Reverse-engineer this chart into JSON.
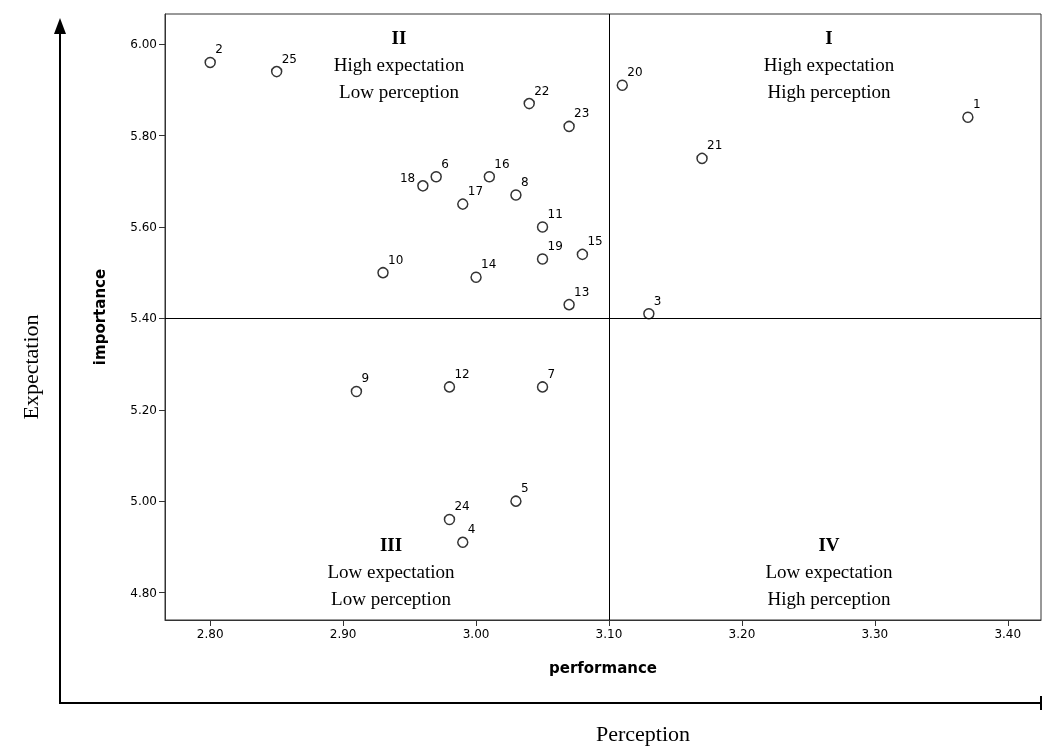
{
  "chart_data": {
    "type": "scatter",
    "xlabel": "performance",
    "ylabel": "importance",
    "color": "#000000",
    "marker": "circle",
    "x": [
      3.37,
      2.8,
      3.13,
      2.99,
      3.03,
      2.97,
      3.05,
      3.03,
      2.91,
      2.93,
      3.05,
      2.98,
      3.07,
      3.0,
      3.08,
      3.01,
      2.99,
      2.96,
      3.05,
      3.11,
      3.17,
      3.04,
      3.07,
      2.98,
      2.85
    ],
    "values": [
      5.84,
      5.96,
      5.41,
      4.91,
      5.0,
      5.71,
      5.25,
      5.67,
      5.24,
      5.5,
      5.6,
      5.25,
      5.43,
      5.49,
      5.54,
      5.71,
      5.65,
      5.69,
      5.53,
      5.91,
      5.75,
      5.87,
      5.82,
      4.96,
      5.94
    ],
    "xlim": [
      2.766,
      3.425
    ],
    "ylim": [
      4.74,
      6.066
    ],
    "xticks": [
      {
        "value": 2.8,
        "label": "2.80"
      },
      {
        "value": 2.9,
        "label": "2.90"
      },
      {
        "value": 3.0,
        "label": "3.00"
      },
      {
        "value": 3.1,
        "label": "3.10"
      },
      {
        "value": 3.2,
        "label": "3.20"
      },
      {
        "value": 3.3,
        "label": "3.30"
      },
      {
        "value": 3.4,
        "label": "3.40"
      }
    ],
    "yticks": [
      {
        "value": 4.8,
        "label": "4.80"
      },
      {
        "value": 5.0,
        "label": "5.00"
      },
      {
        "value": 5.2,
        "label": "5.20"
      },
      {
        "value": 5.4,
        "label": "5.40"
      },
      {
        "value": 5.6,
        "label": "5.60"
      },
      {
        "value": 5.8,
        "label": "5.80"
      },
      {
        "value": 6.0,
        "label": "6.00"
      }
    ],
    "ref_lines": [
      {
        "axis": "x",
        "value": 3.1
      },
      {
        "axis": "y",
        "value": 5.4
      }
    ],
    "annotations": [
      "II\nHigh expectation\nLow perception",
      "I\nHigh expectation\nHigh perception",
      "III\nLow expectation\nLow perception",
      "IV\nLow expectation\nHigh perception",
      "Expectation",
      "Perception",
      {
        "text": "1",
        "x": 3.37,
        "y": 5.84
      },
      {
        "text": "2",
        "x": 2.8,
        "y": 5.96
      },
      {
        "text": "3",
        "x": 3.13,
        "y": 5.41
      },
      {
        "text": "4",
        "x": 2.99,
        "y": 4.91
      },
      {
        "text": "5",
        "x": 3.03,
        "y": 5.0
      },
      {
        "text": "6",
        "x": 2.97,
        "y": 5.71
      },
      {
        "text": "7",
        "x": 3.05,
        "y": 5.25
      },
      {
        "text": "8",
        "x": 3.03,
        "y": 5.67
      },
      {
        "text": "9",
        "x": 2.91,
        "y": 5.24
      },
      {
        "text": "10",
        "x": 2.93,
        "y": 5.5
      },
      {
        "text": "11",
        "x": 3.05,
        "y": 5.6
      },
      {
        "text": "12",
        "x": 2.98,
        "y": 5.25
      },
      {
        "text": "13",
        "x": 3.07,
        "y": 5.43
      },
      {
        "text": "14",
        "x": 3.0,
        "y": 5.49
      },
      {
        "text": "15",
        "x": 3.08,
        "y": 5.54
      },
      {
        "text": "16",
        "x": 3.01,
        "y": 5.71
      },
      {
        "text": "17",
        "x": 2.99,
        "y": 5.65
      },
      {
        "text": "18",
        "x": 2.96,
        "y": 5.69
      },
      {
        "text": "19",
        "x": 3.05,
        "y": 5.53
      },
      {
        "text": "20",
        "x": 3.11,
        "y": 5.91
      },
      {
        "text": "21",
        "x": 3.17,
        "y": 5.75
      },
      {
        "text": "22",
        "x": 3.04,
        "y": 5.87
      },
      {
        "text": "23",
        "x": 3.07,
        "y": 5.82
      },
      {
        "text": "24",
        "x": 2.98,
        "y": 4.96
      },
      {
        "text": "25",
        "x": 2.85,
        "y": 5.94
      }
    ]
  }
}
